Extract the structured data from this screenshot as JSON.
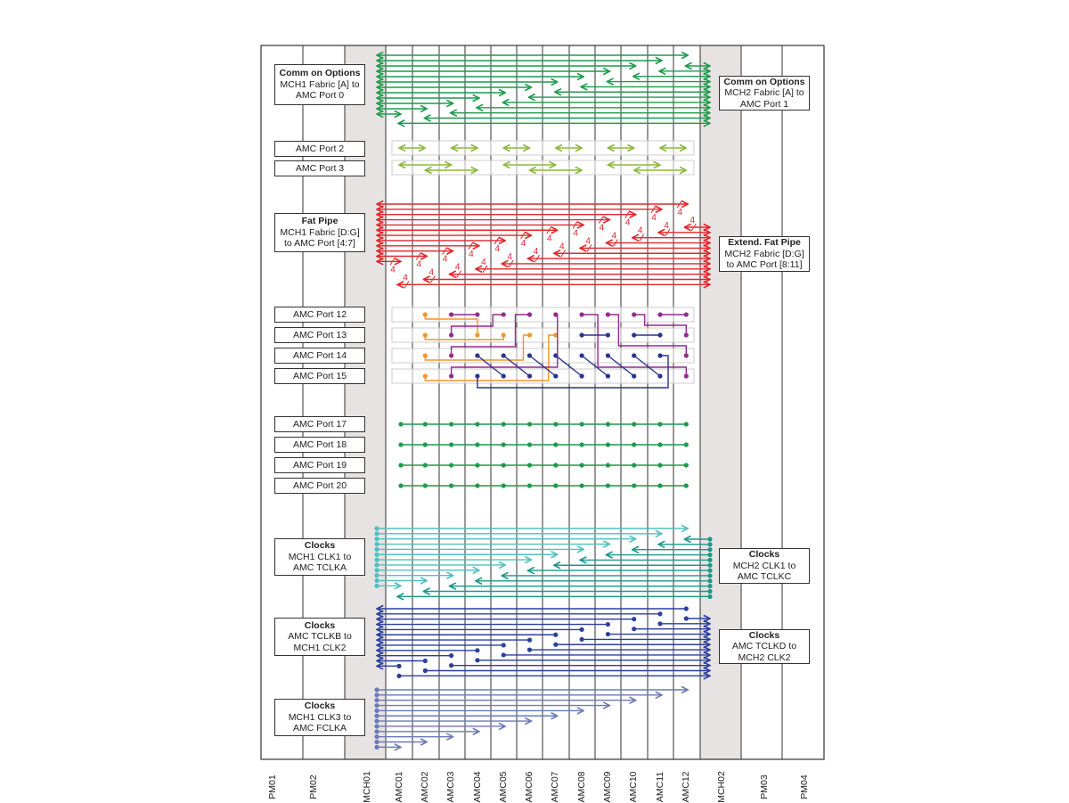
{
  "columns": [
    "PM01",
    "PM02",
    "MCH01",
    "AMC01",
    "AMC02",
    "AMC03",
    "AMC04",
    "AMC05",
    "AMC06",
    "AMC07",
    "AMC08",
    "AMC09",
    "AMC10",
    "AMC11",
    "AMC12",
    "MCH02",
    "PM03",
    "PM04"
  ],
  "left_labels": [
    {
      "title": "Comm on Options",
      "lines": [
        "MCH1 Fabric [A] to",
        "AMC Port 0"
      ]
    },
    {
      "title": "",
      "lines": [
        "AMC Port 2"
      ]
    },
    {
      "title": "",
      "lines": [
        "AMC Port 3"
      ]
    },
    {
      "title": "Fat Pipe",
      "lines": [
        "MCH1 Fabric [D:G]",
        "to AMC Port [4:7]"
      ]
    },
    {
      "title": "",
      "lines": [
        "AMC Port 12"
      ]
    },
    {
      "title": "",
      "lines": [
        "AMC Port 13"
      ]
    },
    {
      "title": "",
      "lines": [
        "AMC Port 14"
      ]
    },
    {
      "title": "",
      "lines": [
        "AMC Port 15"
      ]
    },
    {
      "title": "",
      "lines": [
        "AMC Port 17"
      ]
    },
    {
      "title": "",
      "lines": [
        "AMC Port 18"
      ]
    },
    {
      "title": "",
      "lines": [
        "AMC Port 19"
      ]
    },
    {
      "title": "",
      "lines": [
        "AMC Port 20"
      ]
    },
    {
      "title": "Clocks",
      "lines": [
        "MCH1 CLK1 to",
        "AMC TCLKA"
      ]
    },
    {
      "title": "Clocks",
      "lines": [
        "AMC TCLKB to",
        "MCH1 CLK2"
      ]
    },
    {
      "title": "Clocks",
      "lines": [
        "MCH1 CLK3 to",
        "AMC FCLKA"
      ]
    }
  ],
  "right_labels": [
    {
      "title": "Comm on Options",
      "lines": [
        "MCH2 Fabric [A] to",
        "AMC Port 1"
      ]
    },
    {
      "title": "Extend.  Fat Pipe",
      "lines": [
        "MCH2 Fabric [D:G]",
        "to AMC Port [8:11]"
      ]
    },
    {
      "title": "Clocks",
      "lines": [
        "MCH2 CLK1 to",
        "AMC TCLKC"
      ]
    },
    {
      "title": "Clocks",
      "lines": [
        "AMC TCLKD to",
        "MCH2 CLK2"
      ]
    }
  ],
  "bus_width_label": "4",
  "colors": {
    "common": "#1f9a4c",
    "port23": "#8cb83a",
    "fatpipe": "#e2272c",
    "orange": "#f2962a",
    "purple": "#942a8e",
    "navy": "#28348f",
    "port17_20": "#1f9a4c",
    "clk1_mch1": "#52bfbf",
    "clk1_mch2": "#1c978a",
    "clk2": "#2c3f9d",
    "clk3": "#6d79b6",
    "mch_shade": "#e7e3e3"
  }
}
